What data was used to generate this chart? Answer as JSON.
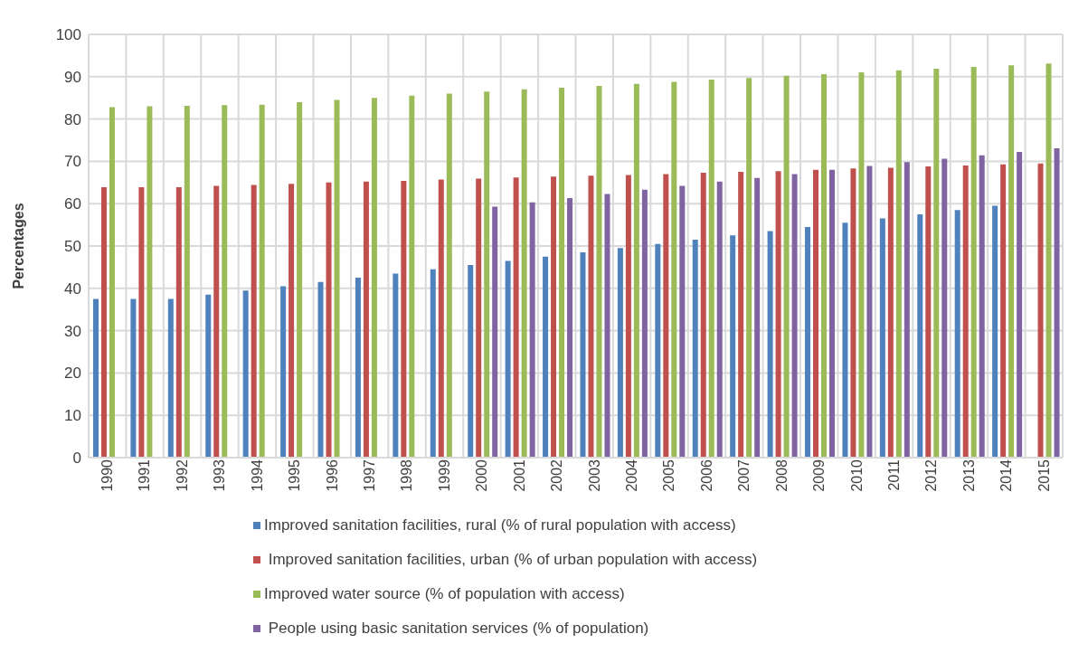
{
  "chart_data": {
    "type": "bar",
    "ylabel": "Percentages",
    "categories": [
      "1990",
      "1991",
      "1992",
      "1993",
      "1994",
      "1995",
      "1996",
      "1997",
      "1998",
      "1999",
      "2000",
      "2001",
      "2002",
      "2003",
      "2004",
      "2005",
      "2006",
      "2007",
      "2008",
      "2009",
      "2010",
      "2011",
      "2012",
      "2013",
      "2014",
      "2015"
    ],
    "series": [
      {
        "name": "Improved sanitation facilities, rural (% of rural population with access)",
        "color": "#4f81bd",
        "values": [
          37.5,
          37.5,
          37.5,
          38.5,
          39.5,
          40.5,
          41.5,
          42.5,
          43.5,
          44.5,
          45.5,
          46.5,
          47.5,
          48.5,
          49.5,
          50.5,
          51.5,
          52.5,
          53.5,
          54.5,
          55.5,
          56.5,
          57.5,
          58.5,
          59.5,
          null
        ]
      },
      {
        "name": " Improved sanitation facilities, urban (% of urban population with access)",
        "color": "#c0504d",
        "values": [
          63.9,
          63.9,
          63.9,
          64.2,
          64.4,
          64.7,
          65.0,
          65.2,
          65.4,
          65.7,
          65.9,
          66.2,
          66.4,
          66.6,
          66.8,
          67.0,
          67.3,
          67.5,
          67.7,
          68.0,
          68.3,
          68.5,
          68.8,
          69.0,
          69.3,
          69.5
        ]
      },
      {
        "name": "Improved water source (% of population with access)",
        "color": "#9bbb59",
        "values": [
          82.8,
          83.0,
          83.1,
          83.3,
          83.4,
          84.0,
          84.5,
          85.0,
          85.5,
          86.0,
          86.5,
          87.0,
          87.4,
          87.8,
          88.3,
          88.8,
          89.3,
          89.7,
          90.2,
          90.6,
          91.0,
          91.5,
          91.9,
          92.3,
          92.7,
          93.1
        ]
      },
      {
        "name": " People using basic sanitation services (% of population)",
        "color": "#8064a2",
        "values": [
          null,
          null,
          null,
          null,
          null,
          null,
          null,
          null,
          null,
          null,
          59.3,
          60.3,
          61.3,
          62.3,
          63.3,
          64.2,
          65.2,
          66.1,
          67.0,
          68.0,
          68.9,
          69.8,
          70.6,
          71.4,
          72.2,
          73.1
        ]
      }
    ],
    "ylim": [
      0,
      100
    ],
    "yticks": [
      0,
      10,
      20,
      30,
      40,
      50,
      60,
      70,
      80,
      90,
      100
    ],
    "grid": true,
    "legend": "bottom"
  }
}
